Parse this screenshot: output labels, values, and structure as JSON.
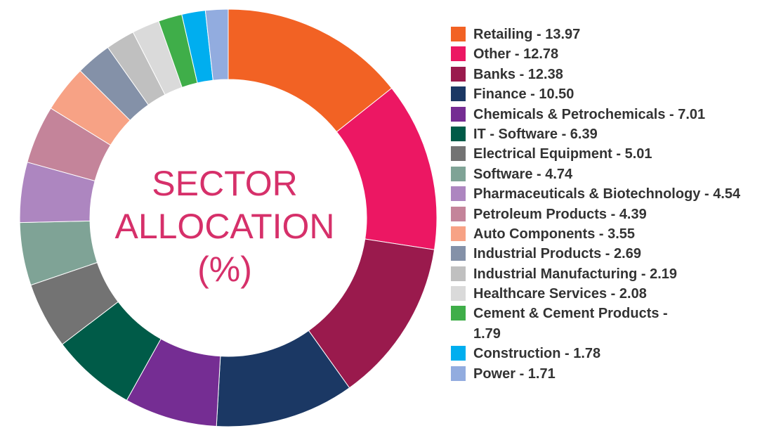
{
  "chart_data": {
    "type": "pie",
    "variant": "donut",
    "title": [
      "SECTOR",
      "ALLOCATION",
      "(%)"
    ],
    "legend_position": "right",
    "slices": [
      {
        "label": "Retailing",
        "value": 13.97,
        "color": "#f26224",
        "legend_text": "Retailing - 13.97"
      },
      {
        "label": "Other",
        "value": 12.78,
        "color": "#ec1763",
        "legend_text": "Other - 12.78"
      },
      {
        "label": "Banks",
        "value": 12.38,
        "color": "#9a1a4d",
        "legend_text": "Banks - 12.38"
      },
      {
        "label": "Finance",
        "value": 10.5,
        "color": "#1b3864",
        "legend_text": "Finance - 10.50"
      },
      {
        "label": "Chemicals & Petrochemicals",
        "value": 7.01,
        "color": "#752d93",
        "legend_text": "Chemicals & Petrochemicals - 7.01"
      },
      {
        "label": "IT - Software",
        "value": 6.39,
        "color": "#005b48",
        "legend_text": "IT - Software - 6.39"
      },
      {
        "label": "Electrical Equipment",
        "value": 5.01,
        "color": "#737373",
        "legend_text": "Electrical Equipment - 5.01"
      },
      {
        "label": "Software",
        "value": 4.74,
        "color": "#7fa396",
        "legend_text": "Software - 4.74"
      },
      {
        "label": "Pharmaceuticals & Biotechnology",
        "value": 4.54,
        "color": "#ad86c0",
        "legend_text": "Pharmaceuticals & Biotechnology - 4.54"
      },
      {
        "label": "Petroleum Products",
        "value": 4.39,
        "color": "#c4849a",
        "legend_text": "Petroleum Products - 4.39"
      },
      {
        "label": "Auto Components",
        "value": 3.55,
        "color": "#f7a285",
        "legend_text": "Auto Components - 3.55"
      },
      {
        "label": "Industrial Products",
        "value": 2.69,
        "color": "#8491a8",
        "legend_text": "Industrial Products - 2.69"
      },
      {
        "label": "Industrial Manufacturing",
        "value": 2.19,
        "color": "#c0c0c0",
        "legend_text": "Industrial Manufacturing - 2.19"
      },
      {
        "label": "Healthcare Services",
        "value": 2.08,
        "color": "#dadada",
        "legend_text": "Healthcare Services - 2.08"
      },
      {
        "label": "Cement & Cement Products",
        "value": 1.79,
        "color": "#3fae49",
        "legend_text": "Cement & Cement Products - 1.79"
      },
      {
        "label": "Construction",
        "value": 1.78,
        "color": "#00aeef",
        "legend_text": "Construction - 1.78"
      },
      {
        "label": "Power",
        "value": 1.71,
        "color": "#92acdf",
        "legend_text": "Power - 1.71"
      }
    ]
  }
}
